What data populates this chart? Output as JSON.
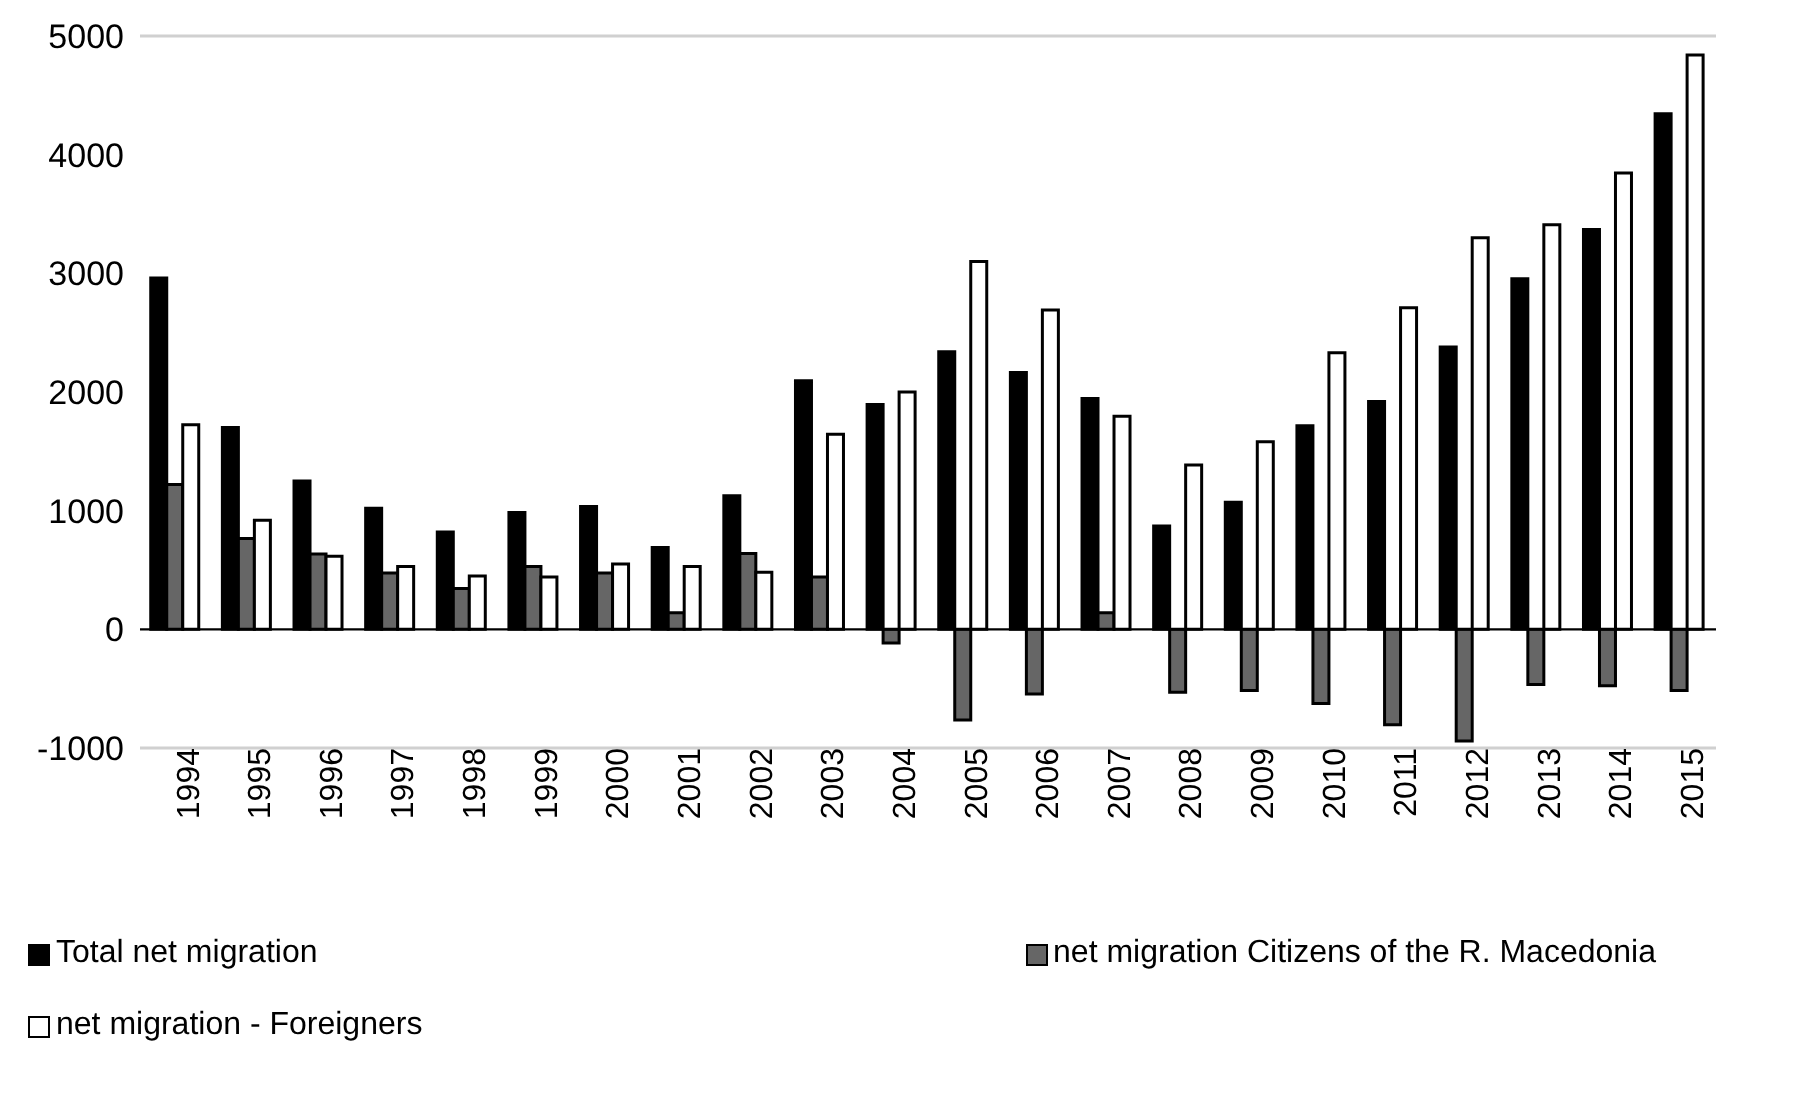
{
  "chart_data": {
    "type": "bar",
    "categories": [
      "1994",
      "1995",
      "1996",
      "1997",
      "1998",
      "1999",
      "2000",
      "2001",
      "2002",
      "2003",
      "2004",
      "2005",
      "2006",
      "2007",
      "2008",
      "2009",
      "2010",
      "2011",
      "2012",
      "2013",
      "2014",
      "2015"
    ],
    "series": [
      {
        "name": "Total net migration",
        "color": "#000000",
        "values": [
          2960,
          1700,
          1250,
          1020,
          820,
          985,
          1035,
          690,
          1125,
          2095,
          1895,
          2340,
          2165,
          1945,
          870,
          1070,
          1715,
          1920,
          2380,
          2955,
          3370,
          4345
        ]
      },
      {
        "name": "net migration Citizens of the R. Macedonia",
        "color": "#666666",
        "values": [
          1220,
          765,
          635,
          475,
          345,
          530,
          475,
          140,
          640,
          440,
          -115,
          -765,
          -545,
          140,
          -530,
          -515,
          -625,
          -805,
          -940,
          -465,
          -475,
          -515
        ]
      },
      {
        "name": "net migration - Foreigners",
        "color": "#ffffff",
        "values": [
          1725,
          920,
          615,
          530,
          450,
          440,
          550,
          530,
          480,
          1645,
          2000,
          3100,
          2690,
          1795,
          1385,
          1580,
          2330,
          2710,
          3300,
          3410,
          3845,
          4840
        ]
      }
    ],
    "ylim": [
      -1000,
      5000
    ],
    "yticks": [
      -1000,
      0,
      1000,
      2000,
      3000,
      4000,
      5000
    ],
    "grid": "y",
    "legend": "bottom"
  }
}
